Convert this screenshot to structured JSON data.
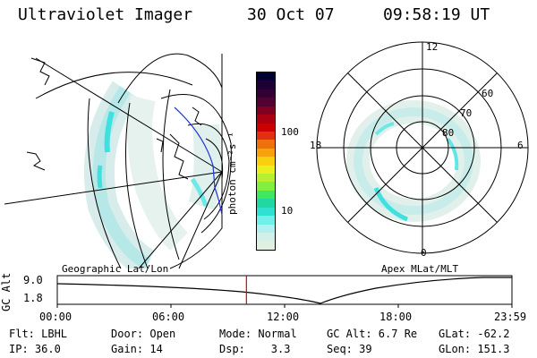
{
  "header": {
    "instrument": "Ultraviolet Imager",
    "date": "30 Oct 07",
    "time": "09:58:19 UT"
  },
  "geo_map": {
    "caption": "Geographic Lat/Lon"
  },
  "colorbar": {
    "unit_label": "photon cm⁻²s⁻¹",
    "ticks": [
      "100",
      "10"
    ],
    "colors": [
      "#000033",
      "#1a0033",
      "#330033",
      "#550033",
      "#800022",
      "#aa0011",
      "#cc0000",
      "#e03010",
      "#f07010",
      "#f8a010",
      "#f8d010",
      "#e8f020",
      "#b8f030",
      "#80f040",
      "#40e860",
      "#20d8a0",
      "#30e0d0",
      "#70f0e8",
      "#b0f0f0",
      "#d0f0e8",
      "#e0f0e0"
    ]
  },
  "polar": {
    "caption": "Apex MLat/MLT",
    "mlt_labels": [
      "12",
      "18",
      "6",
      "0"
    ],
    "lat_labels": [
      "60",
      "70",
      "80"
    ]
  },
  "orbit": {
    "ylabel": "GC Alt",
    "ticks_y": [
      "9.0",
      "1.8"
    ],
    "ticks_x": [
      "00:00",
      "06:00",
      "12:00",
      "18:00",
      "23:59"
    ],
    "marker_color": "#dd0000",
    "marker_fraction": 0.416
  },
  "info": {
    "row1": [
      {
        "label": "Flt: LBHL"
      },
      {
        "label": "Door: Open"
      },
      {
        "label": "Mode: Normal"
      },
      {
        "label": "GC Alt: 6.7 Re"
      },
      {
        "label": "GLat: -62.2"
      }
    ],
    "row2": [
      {
        "label": "IP: 36.0"
      },
      {
        "label": "Gain: 14"
      },
      {
        "label": "Dsp:    3.3"
      },
      {
        "label": "Seq: 39"
      },
      {
        "label": "GLon: 151.3"
      }
    ]
  }
}
